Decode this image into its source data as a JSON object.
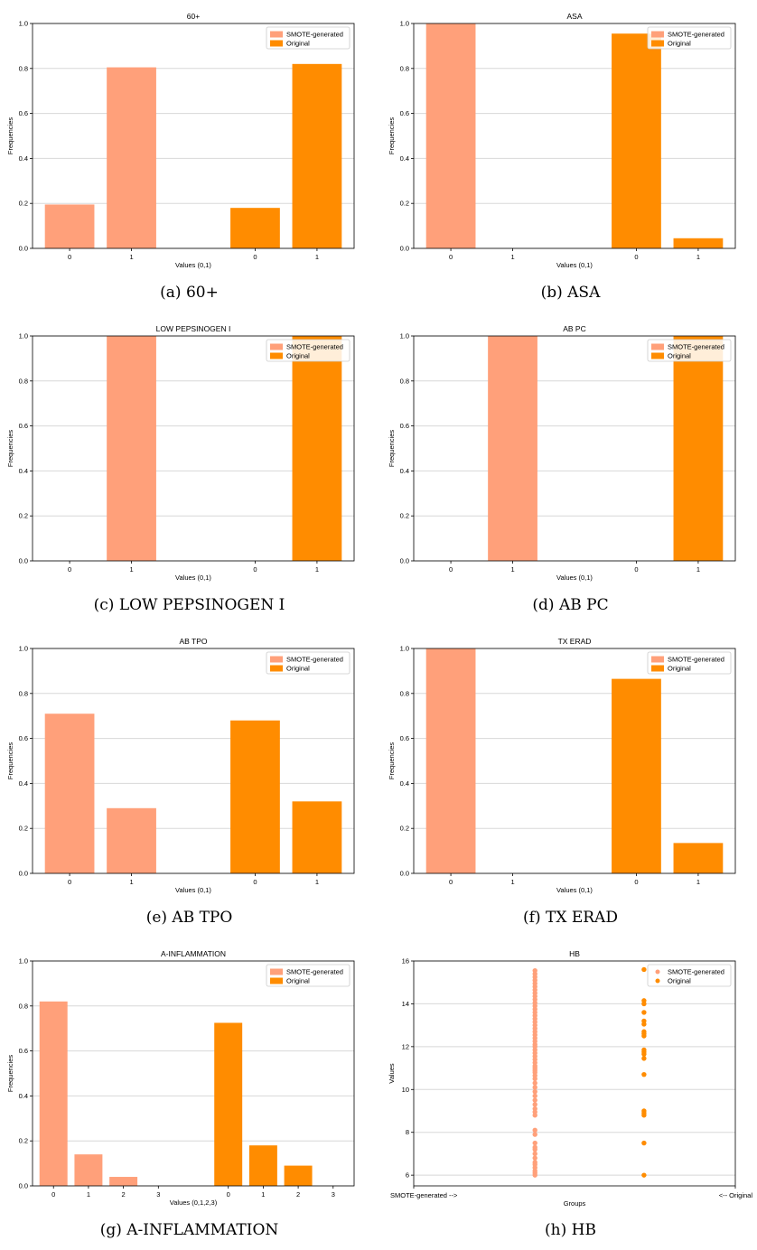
{
  "colors": {
    "smote": "#FFA07A",
    "original": "#FF8C00",
    "grid": "#d8d8d8",
    "axis": "#000000"
  },
  "chart_data": [
    {
      "type": "bar",
      "title": "60+",
      "caption": "(a) 60+",
      "xlabel": "Values (0,1)",
      "ylabel": "Frequencies",
      "ylim": [
        0,
        1.0
      ],
      "yticks": [
        "0.0",
        "0.2",
        "0.4",
        "0.6",
        "0.8",
        "1.0"
      ],
      "legend_position": "top-right",
      "categories": [
        "0",
        "1"
      ],
      "series": [
        {
          "name": "SMOTE-generated",
          "values": [
            0.195,
            0.805
          ]
        },
        {
          "name": "Original",
          "values": [
            0.18,
            0.82
          ]
        }
      ]
    },
    {
      "type": "bar",
      "title": "ASA",
      "caption": "(b) ASA",
      "xlabel": "Values (0,1)",
      "ylabel": "Frequencies",
      "ylim": [
        0,
        1.0
      ],
      "yticks": [
        "0.0",
        "0.2",
        "0.4",
        "0.6",
        "0.8",
        "1.0"
      ],
      "legend_position": "top-right",
      "categories": [
        "0",
        "1"
      ],
      "series": [
        {
          "name": "SMOTE-generated",
          "values": [
            1.0,
            0.0
          ]
        },
        {
          "name": "Original",
          "values": [
            0.955,
            0.045
          ]
        }
      ]
    },
    {
      "type": "bar",
      "title": "LOW PEPSINOGEN I",
      "caption": "(c) LOW PEPSINOGEN I",
      "xlabel": "Values (0,1)",
      "ylabel": "Frequencies",
      "ylim": [
        0,
        1.0
      ],
      "yticks": [
        "0.0",
        "0.2",
        "0.4",
        "0.6",
        "0.8",
        "1.0"
      ],
      "legend_position": "top-right",
      "categories": [
        "0",
        "1"
      ],
      "series": [
        {
          "name": "SMOTE-generated",
          "values": [
            0.0,
            1.0
          ]
        },
        {
          "name": "Original",
          "values": [
            0.0,
            1.0
          ]
        }
      ]
    },
    {
      "type": "bar",
      "title": "AB PC",
      "caption": "(d) AB PC",
      "xlabel": "Values (0,1)",
      "ylabel": "Frequencies",
      "ylim": [
        0,
        1.0
      ],
      "yticks": [
        "0.0",
        "0.2",
        "0.4",
        "0.6",
        "0.8",
        "1.0"
      ],
      "legend_position": "top-right",
      "categories": [
        "0",
        "1"
      ],
      "series": [
        {
          "name": "SMOTE-generated",
          "values": [
            0.0,
            1.0
          ]
        },
        {
          "name": "Original",
          "values": [
            0.0,
            1.0
          ]
        }
      ]
    },
    {
      "type": "bar",
      "title": "AB TPO",
      "caption": "(e) AB TPO",
      "xlabel": "Values (0,1)",
      "ylabel": "Frequencies",
      "ylim": [
        0,
        1.0
      ],
      "yticks": [
        "0.0",
        "0.2",
        "0.4",
        "0.6",
        "0.8",
        "1.0"
      ],
      "legend_position": "top-right",
      "categories": [
        "0",
        "1"
      ],
      "series": [
        {
          "name": "SMOTE-generated",
          "values": [
            0.71,
            0.29
          ]
        },
        {
          "name": "Original",
          "values": [
            0.68,
            0.32
          ]
        }
      ]
    },
    {
      "type": "bar",
      "title": "TX ERAD",
      "caption": "(f) TX ERAD",
      "xlabel": "Values (0,1)",
      "ylabel": "Frequencies",
      "ylim": [
        0,
        1.0
      ],
      "yticks": [
        "0.0",
        "0.2",
        "0.4",
        "0.6",
        "0.8",
        "1.0"
      ],
      "legend_position": "top-right",
      "categories": [
        "0",
        "1"
      ],
      "series": [
        {
          "name": "SMOTE-generated",
          "values": [
            1.0,
            0.0
          ]
        },
        {
          "name": "Original",
          "values": [
            0.865,
            0.135
          ]
        }
      ]
    },
    {
      "type": "bar",
      "title": "A-INFLAMMATION",
      "caption": "(g) A-INFLAMMATION",
      "xlabel": "Values (0,1,2,3)",
      "ylabel": "Frequencies",
      "ylim": [
        0,
        1.0
      ],
      "yticks": [
        "0.0",
        "0.2",
        "0.4",
        "0.6",
        "0.8",
        "1.0"
      ],
      "legend_position": "top-right",
      "categories": [
        "0",
        "1",
        "2",
        "3"
      ],
      "series": [
        {
          "name": "SMOTE-generated",
          "values": [
            0.82,
            0.14,
            0.04,
            0.0
          ]
        },
        {
          "name": "Original",
          "values": [
            0.725,
            0.18,
            0.09,
            0.0
          ]
        }
      ]
    },
    {
      "type": "scatter",
      "title": "HB",
      "caption": "(h) HB",
      "xlabel": "Groups",
      "ylabel": "Values",
      "ylim": [
        5.5,
        16.0
      ],
      "yticks": [
        6,
        8,
        10,
        12,
        14,
        16
      ],
      "legend_position": "top-right",
      "x_end_labels": [
        "SMOTE-generated -->",
        "<-- Original"
      ],
      "series": [
        {
          "name": "SMOTE-generated",
          "values": [
            6.0,
            6.1,
            6.2,
            6.35,
            6.5,
            6.6,
            6.8,
            7.0,
            7.2,
            7.3,
            7.5,
            7.9,
            8.1,
            8.8,
            8.95,
            9.1,
            9.3,
            9.5,
            9.7,
            9.9,
            10.1,
            10.3,
            10.5,
            10.65,
            10.8,
            10.9,
            11.0,
            11.1,
            11.25,
            11.4,
            11.55,
            11.7,
            11.85,
            12.0,
            12.1,
            12.25,
            12.4,
            12.55,
            12.7,
            12.85,
            13.0,
            13.15,
            13.3,
            13.45,
            13.6,
            13.75,
            13.9,
            14.05,
            14.2,
            14.35,
            14.5,
            14.65,
            14.8,
            14.95,
            15.1,
            15.25,
            15.4,
            15.55
          ]
        },
        {
          "name": "Original",
          "values": [
            6.0,
            7.5,
            8.8,
            8.9,
            9.0,
            10.7,
            11.45,
            11.65,
            11.75,
            11.85,
            12.5,
            12.6,
            12.7,
            13.05,
            13.2,
            13.6,
            14.0,
            14.15,
            15.6
          ]
        }
      ]
    }
  ]
}
